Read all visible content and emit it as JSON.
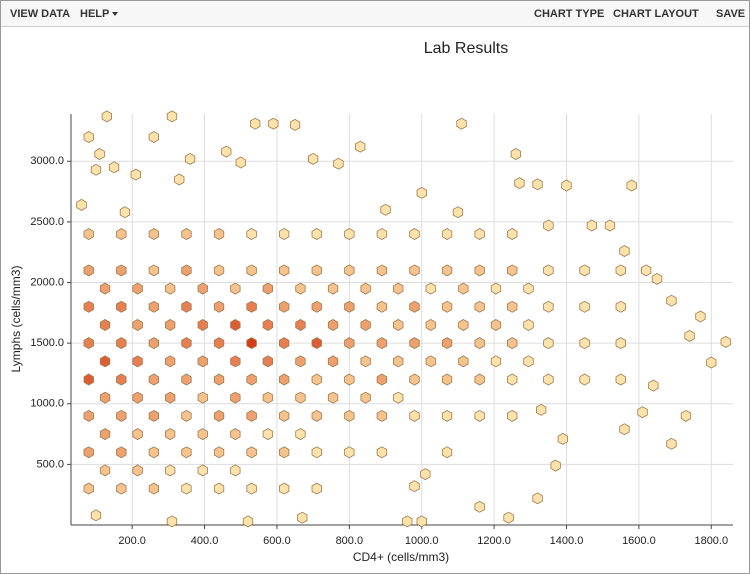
{
  "toolbar": {
    "left": [
      "VIEW DATA",
      "HELP"
    ],
    "right": [
      "CHART TYPE",
      "CHART LAYOUT",
      "SAVE"
    ]
  },
  "chart_data": {
    "type": "hexbin",
    "title": "Lab Results",
    "x_label": "CD4+ (cells/mm3)",
    "y_label": "Lymphs (cells/mm3)",
    "xlim": [
      31,
      1860
    ],
    "ylim": [
      0,
      3390
    ],
    "xticks": [
      {
        "value": 200,
        "label": "200.0"
      },
      {
        "value": 400,
        "label": "400.0"
      },
      {
        "value": 600,
        "label": "600.0"
      },
      {
        "value": 800,
        "label": "800.0"
      },
      {
        "value": 1000,
        "label": "1000.0"
      },
      {
        "value": 1200,
        "label": "1200.0"
      },
      {
        "value": 1400,
        "label": "1400.0"
      },
      {
        "value": 1600,
        "label": "1600.0"
      },
      {
        "value": 1800,
        "label": "1800.0"
      }
    ],
    "yticks": [
      {
        "value": 500,
        "label": "500.0"
      },
      {
        "value": 1000,
        "label": "1000.0"
      },
      {
        "value": 1500,
        "label": "1500.0"
      },
      {
        "value": 2000,
        "label": "2000.0"
      },
      {
        "value": 2500,
        "label": "2500.0"
      },
      {
        "value": 3000,
        "label": "3000.0"
      }
    ],
    "grid": true,
    "color_scale": [
      "#fde3ab",
      "#d83c16"
    ],
    "stroke": "#9c7b4c",
    "x": [
      130,
      310,
      1110,
      540,
      590,
      650,
      80,
      260,
      830,
      1260,
      110,
      360,
      460,
      500,
      700,
      770,
      100,
      150,
      210,
      330,
      1000,
      1400,
      1580,
      1270,
      1320,
      60,
      180,
      900,
      1100,
      1470,
      1520,
      1350,
      1560,
      1620,
      1650,
      1690,
      1770,
      1740,
      1840,
      1800,
      1730,
      1640,
      1610,
      1690,
      1560,
      1330,
      1390,
      1370,
      1320,
      1240,
      1160,
      1010,
      980,
      1000,
      960,
      670,
      520,
      310,
      100,
      80,
      170,
      260,
      350,
      440,
      530,
      620,
      710,
      800,
      890,
      980,
      1070,
      1160,
      1250,
      80,
      170,
      260,
      350,
      440,
      530,
      620,
      710,
      800,
      890,
      980,
      1070,
      1160,
      1250,
      1350,
      1450,
      1550,
      80,
      170,
      260,
      350,
      440,
      530,
      620,
      710,
      800,
      890,
      980,
      1070,
      1160,
      1250,
      1350,
      1450,
      1550,
      80,
      170,
      260,
      350,
      440,
      530,
      620,
      710,
      800,
      890,
      980,
      1070,
      1160,
      1250,
      1350,
      1450,
      1550,
      80,
      170,
      260,
      350,
      440,
      530,
      620,
      710,
      800,
      890,
      980,
      1070,
      1160,
      1250,
      1350,
      1450,
      1550,
      80,
      170,
      260,
      350,
      440,
      530,
      620,
      710,
      800,
      890,
      980,
      1070,
      1160,
      1250,
      80,
      170,
      260,
      350,
      440,
      530,
      620,
      710,
      800,
      890,
      1070,
      80,
      170,
      260,
      350,
      440,
      530,
      620,
      710,
      125,
      215,
      305,
      395,
      485,
      575,
      665,
      755,
      845,
      935,
      1025,
      1115,
      1205,
      1295,
      125,
      215,
      305,
      395,
      485,
      575,
      665,
      755,
      845,
      935,
      1025,
      1115,
      1205,
      1295,
      125,
      215,
      305,
      395,
      485,
      575,
      665,
      755,
      845,
      935,
      1025,
      1115,
      1205,
      1295,
      125,
      215,
      305,
      395,
      485,
      575,
      665,
      755,
      845,
      935,
      125,
      215,
      305,
      395,
      485,
      575,
      665,
      125,
      215,
      305,
      395,
      485
    ],
    "y": [
      3370,
      3370,
      3310,
      3310,
      3310,
      3300,
      3200,
      3200,
      3120,
      3060,
      3060,
      3020,
      3080,
      2990,
      3020,
      2980,
      2930,
      2950,
      2890,
      2850,
      2740,
      2800,
      2800,
      2820,
      2810,
      2640,
      2580,
      2600,
      2580,
      2470,
      2470,
      2470,
      2260,
      2100,
      2030,
      1850,
      1720,
      1560,
      1510,
      1340,
      900,
      1150,
      930,
      670,
      790,
      950,
      710,
      490,
      220,
      60,
      150,
      420,
      320,
      30,
      30,
      60,
      30,
      30,
      80,
      2400,
      2400,
      2400,
      2400,
      2400,
      2400,
      2400,
      2400,
      2400,
      2400,
      2400,
      2400,
      2400,
      2400,
      2100,
      2100,
      2100,
      2100,
      2100,
      2100,
      2100,
      2100,
      2100,
      2100,
      2100,
      2100,
      2100,
      2100,
      2100,
      2100,
      2100,
      1800,
      1800,
      1800,
      1800,
      1800,
      1800,
      1800,
      1800,
      1800,
      1800,
      1800,
      1800,
      1800,
      1800,
      1800,
      1800,
      1800,
      1500,
      1500,
      1500,
      1500,
      1500,
      1500,
      1500,
      1500,
      1500,
      1500,
      1500,
      1500,
      1500,
      1500,
      1500,
      1500,
      1500,
      1200,
      1200,
      1200,
      1200,
      1200,
      1200,
      1200,
      1200,
      1200,
      1200,
      1200,
      1200,
      1200,
      1200,
      1200,
      1200,
      1200,
      900,
      900,
      900,
      900,
      900,
      900,
      900,
      900,
      900,
      900,
      900,
      900,
      900,
      900,
      600,
      600,
      600,
      600,
      600,
      600,
      600,
      600,
      600,
      600,
      600,
      300,
      300,
      300,
      300,
      300,
      300,
      300,
      300,
      1950,
      1950,
      1950,
      1950,
      1950,
      1950,
      1950,
      1950,
      1950,
      1950,
      1950,
      1950,
      1950,
      1950,
      1650,
      1650,
      1650,
      1650,
      1650,
      1650,
      1650,
      1650,
      1650,
      1650,
      1650,
      1650,
      1650,
      1650,
      1350,
      1350,
      1350,
      1350,
      1350,
      1350,
      1350,
      1350,
      1350,
      1350,
      1350,
      1350,
      1350,
      1350,
      1050,
      1050,
      1050,
      1050,
      1050,
      1050,
      1050,
      1050,
      1050,
      1050,
      750,
      750,
      750,
      750,
      750,
      750,
      750,
      450,
      450,
      450,
      450,
      450
    ],
    "counts": [
      1,
      1,
      1,
      1,
      1,
      1,
      1,
      1,
      1,
      1,
      1,
      1,
      1,
      1,
      1,
      1,
      1,
      1,
      1,
      1,
      1,
      1,
      1,
      1,
      1,
      1,
      1,
      1,
      1,
      1,
      1,
      1,
      1,
      1,
      1,
      1,
      1,
      1,
      1,
      1,
      1,
      1,
      1,
      1,
      1,
      1,
      1,
      1,
      1,
      1,
      1,
      1,
      1,
      1,
      1,
      1,
      1,
      1,
      1,
      2,
      2,
      2,
      2,
      2,
      1,
      1,
      1,
      1,
      1,
      1,
      1,
      1,
      1,
      3,
      3,
      2,
      3,
      2,
      2,
      2,
      2,
      2,
      2,
      2,
      2,
      2,
      2,
      1,
      1,
      1,
      4,
      4,
      3,
      4,
      3,
      4,
      3,
      3,
      3,
      2,
      3,
      2,
      2,
      2,
      1,
      1,
      1,
      4,
      4,
      3,
      4,
      4,
      6,
      4,
      5,
      3,
      3,
      3,
      3,
      2,
      2,
      1,
      1,
      1,
      5,
      4,
      3,
      3,
      3,
      3,
      3,
      2,
      2,
      3,
      2,
      2,
      2,
      1,
      1,
      1,
      1,
      3,
      3,
      3,
      2,
      3,
      3,
      2,
      2,
      2,
      2,
      1,
      1,
      1,
      1,
      3,
      3,
      2,
      2,
      2,
      2,
      2,
      1,
      1,
      1,
      1,
      2,
      2,
      2,
      1,
      1,
      1,
      1,
      1,
      3,
      3,
      2,
      3,
      2,
      3,
      2,
      2,
      2,
      2,
      1,
      2,
      1,
      1,
      4,
      3,
      3,
      4,
      5,
      4,
      4,
      3,
      3,
      2,
      2,
      2,
      2,
      1,
      5,
      4,
      3,
      3,
      4,
      4,
      3,
      3,
      2,
      2,
      2,
      2,
      1,
      1,
      3,
      3,
      3,
      2,
      3,
      2,
      2,
      2,
      2,
      1,
      3,
      2,
      2,
      2,
      2,
      1,
      1,
      2,
      2,
      1,
      1,
      1
    ]
  }
}
